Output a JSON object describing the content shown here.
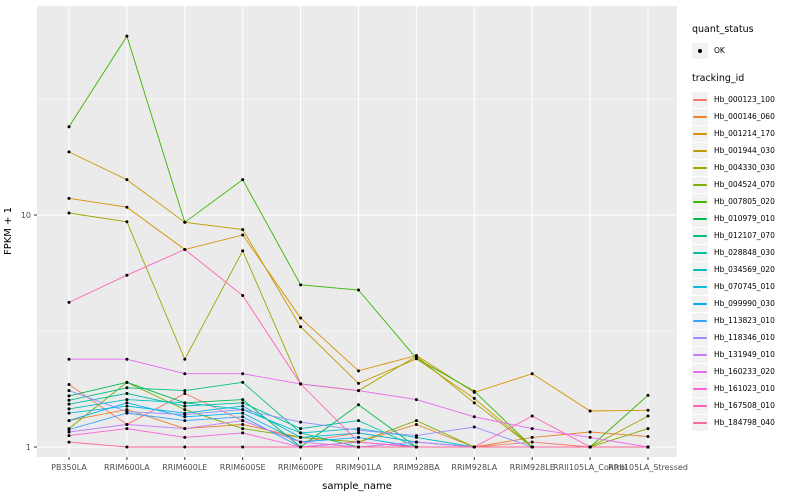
{
  "chart_data": {
    "type": "line",
    "title": "",
    "xlabel": "sample_name",
    "ylabel": "FPKM + 1",
    "y_scale": "log10",
    "ylim": [
      1,
      80
    ],
    "y_major_breaks": [
      1,
      10
    ],
    "y_minor_breaks": [
      3.162,
      31.62
    ],
    "y_tick_labels": [
      "1",
      "10"
    ],
    "grid": "on",
    "legend_position": "right",
    "point_marker": "black-dot",
    "categories": [
      "PB350LA",
      "RRIM600LA",
      "RRIM600LE",
      "RRIM600SE",
      "RRIM600PE",
      "RRIM901LA",
      "RRIM928BA",
      "RRIM928LA",
      "RRIM928LE",
      "RRII105LA_Control",
      "RRII105LA_Stressed"
    ],
    "series": [
      {
        "name": "Hb_000123_100",
        "color": "#F8766D",
        "values": [
          1.86,
          1.25,
          1.7,
          1.3,
          1.05,
          1.15,
          1.05,
          1.0,
          1.05,
          1.0,
          1.0
        ]
      },
      {
        "name": "Hb_000146_060",
        "color": "#EA8331",
        "values": [
          1.3,
          1.45,
          1.2,
          1.25,
          1.1,
          1.05,
          1.25,
          1.0,
          1.1,
          1.16,
          1.11
        ]
      },
      {
        "name": "Hb_001214_170",
        "color": "#D89000",
        "values": [
          11.8,
          10.8,
          7.1,
          8.2,
          3.6,
          2.13,
          2.48,
          1.72,
          2.07,
          1.43,
          1.44
        ]
      },
      {
        "name": "Hb_001944_030",
        "color": "#C09B00",
        "values": [
          18.7,
          14.2,
          9.3,
          8.65,
          3.3,
          1.88,
          2.4,
          1.62,
          1.0,
          1.0,
          1.0
        ]
      },
      {
        "name": "Hb_004330_030",
        "color": "#A3A500",
        "values": [
          10.2,
          9.35,
          2.39,
          7.0,
          1.87,
          1.75,
          2.46,
          1.55,
          1.0,
          1.0,
          1.36
        ]
      },
      {
        "name": "Hb_004524_070",
        "color": "#7CAE00",
        "values": [
          1.2,
          1.9,
          1.45,
          1.2,
          1.1,
          1.05,
          1.3,
          1.0,
          1.0,
          1.0,
          1.2
        ]
      },
      {
        "name": "Hb_007805_020",
        "color": "#39B600",
        "values": [
          24.0,
          59.0,
          9.3,
          14.2,
          5.0,
          4.75,
          2.41,
          1.74,
          1.0,
          1.0,
          1.67
        ]
      },
      {
        "name": "Hb_010979_010",
        "color": "#00BB4E",
        "values": [
          1.66,
          1.9,
          1.55,
          1.6,
          1.0,
          1.52,
          1.0,
          1.0,
          1.0,
          1.0,
          1.0
        ]
      },
      {
        "name": "Hb_012107_070",
        "color": "#00BF7D",
        "values": [
          1.59,
          1.8,
          1.75,
          1.9,
          1.15,
          1.0,
          1.0,
          1.0,
          1.0,
          1.0,
          1.0
        ]
      },
      {
        "name": "Hb_028848_030",
        "color": "#00C1A3",
        "values": [
          1.53,
          1.7,
          1.5,
          1.55,
          1.2,
          1.3,
          1.0,
          1.0,
          1.0,
          1.0,
          1.0
        ]
      },
      {
        "name": "Hb_034569_020",
        "color": "#00BFC4",
        "values": [
          1.46,
          1.6,
          1.55,
          1.45,
          1.15,
          1.2,
          1.1,
          1.0,
          1.0,
          1.0,
          1.0
        ]
      },
      {
        "name": "Hb_070745_010",
        "color": "#00BAE0",
        "values": [
          1.4,
          1.5,
          1.4,
          1.5,
          1.1,
          1.15,
          1.05,
          1.0,
          1.0,
          1.0,
          1.0
        ]
      },
      {
        "name": "Hb_099990_030",
        "color": "#00B0F6",
        "values": [
          1.3,
          1.55,
          1.35,
          1.4,
          1.05,
          1.1,
          1.0,
          1.0,
          1.0,
          1.0,
          1.0
        ]
      },
      {
        "name": "Hb_113823_010",
        "color": "#35A2FF",
        "values": [
          1.19,
          1.4,
          1.3,
          1.35,
          1.0,
          1.05,
          1.0,
          1.0,
          1.0,
          1.0,
          1.0
        ]
      },
      {
        "name": "Hb_118346_010",
        "color": "#9590FF",
        "values": [
          1.75,
          1.42,
          1.38,
          1.45,
          1.28,
          1.18,
          1.12,
          1.22,
          1.0,
          1.0,
          1.0
        ]
      },
      {
        "name": "Hb_131949_010",
        "color": "#C77CFF",
        "values": [
          1.16,
          1.25,
          1.2,
          1.3,
          1.05,
          1.0,
          1.05,
          1.0,
          1.0,
          1.0,
          1.0
        ]
      },
      {
        "name": "Hb_160233_020",
        "color": "#E76BF3",
        "values": [
          2.39,
          2.39,
          2.07,
          2.07,
          1.87,
          1.75,
          1.6,
          1.35,
          1.2,
          1.1,
          1.0
        ]
      },
      {
        "name": "Hb_161023_010",
        "color": "#FA62DB",
        "values": [
          1.12,
          1.2,
          1.1,
          1.15,
          1.0,
          1.05,
          1.0,
          1.0,
          1.0,
          1.0,
          1.0
        ]
      },
      {
        "name": "Hb_167508_010",
        "color": "#FF62BC",
        "values": [
          4.2,
          5.5,
          7.1,
          4.5,
          1.87,
          1.05,
          1.0,
          1.0,
          1.36,
          1.0,
          1.0
        ]
      },
      {
        "name": "Hb_184798_040",
        "color": "#FF6A98",
        "values": [
          1.05,
          1.0,
          1.0,
          1.0,
          1.0,
          1.0,
          1.0,
          1.0,
          1.0,
          1.0,
          1.0
        ]
      }
    ]
  },
  "legend": {
    "quant_status_title": "quant_status",
    "ok_label": "OK",
    "tracking_id_title": "tracking_id"
  },
  "theme": {
    "panel_background": "#EBEBEB",
    "grid_color": "#FFFFFF",
    "tick_label_color": "#4D4D4D",
    "point_color": "#000000",
    "legend_key_background": "#F2F2F2"
  }
}
